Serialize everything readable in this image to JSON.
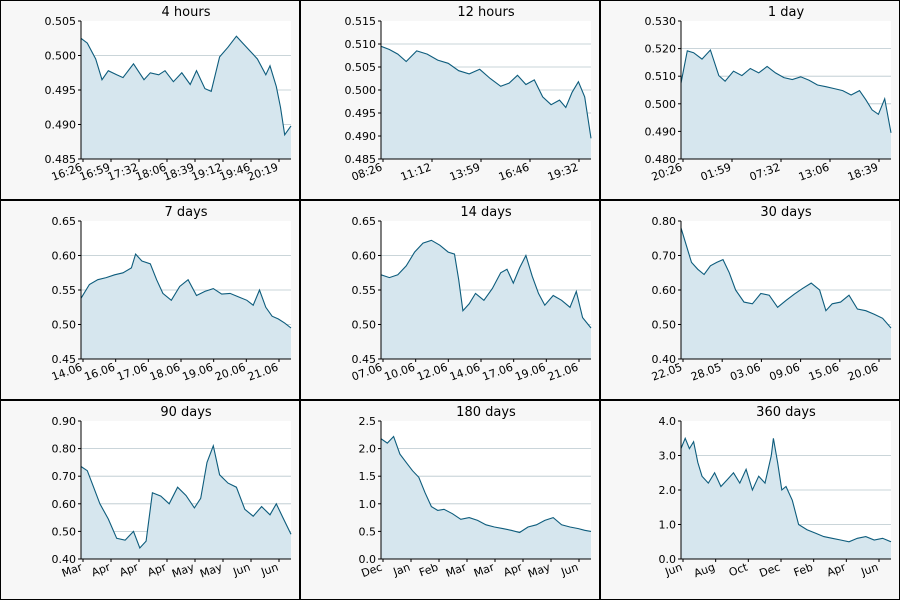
{
  "colors": {
    "line": "#0d5c7c",
    "fill": "#d6e6ee",
    "grid": "#b9c7cd",
    "panel_bg": "#f7f7f7",
    "plot_bg": "#ffffff",
    "border": "#000000"
  },
  "chart_data": [
    {
      "type": "area",
      "title": "4 hours",
      "ylim": [
        0.485,
        0.505
      ],
      "yticks": [
        "0.485",
        "0.490",
        "0.495",
        "0.500",
        "0.505"
      ],
      "xticks": [
        "16:26",
        "16:59",
        "17:32",
        "18:06",
        "18:39",
        "19:12",
        "19:46",
        "20:19"
      ],
      "grid": true,
      "x": [
        0,
        0.03,
        0.07,
        0.1,
        0.13,
        0.17,
        0.2,
        0.25,
        0.3,
        0.33,
        0.37,
        0.4,
        0.44,
        0.48,
        0.52,
        0.55,
        0.59,
        0.62,
        0.66,
        0.7,
        0.74,
        0.77,
        0.81,
        0.84,
        0.88,
        0.9,
        0.93,
        0.95,
        0.97,
        1.0
      ],
      "y": [
        0.5025,
        0.5018,
        0.4995,
        0.4965,
        0.4978,
        0.4972,
        0.4968,
        0.4988,
        0.4965,
        0.4975,
        0.4972,
        0.4978,
        0.4962,
        0.4975,
        0.4958,
        0.4978,
        0.4952,
        0.4948,
        0.4998,
        0.5012,
        0.5028,
        0.5018,
        0.5005,
        0.4995,
        0.4972,
        0.4985,
        0.4955,
        0.4925,
        0.4885,
        0.4898
      ]
    },
    {
      "type": "area",
      "title": "12 hours",
      "ylim": [
        0.485,
        0.515
      ],
      "yticks": [
        "0.485",
        "0.490",
        "0.495",
        "0.500",
        "0.505",
        "0.510",
        "0.515"
      ],
      "xticks": [
        "08:26",
        "11:12",
        "13:59",
        "16:46",
        "19:32"
      ],
      "grid": true,
      "x": [
        0,
        0.04,
        0.08,
        0.12,
        0.17,
        0.22,
        0.27,
        0.32,
        0.37,
        0.42,
        0.47,
        0.52,
        0.57,
        0.61,
        0.65,
        0.69,
        0.73,
        0.77,
        0.81,
        0.85,
        0.88,
        0.91,
        0.94,
        0.97,
        1.0
      ],
      "y": [
        0.5095,
        0.5088,
        0.5078,
        0.5062,
        0.5085,
        0.5078,
        0.5065,
        0.5058,
        0.5042,
        0.5035,
        0.5045,
        0.5025,
        0.5008,
        0.5015,
        0.5032,
        0.5012,
        0.5022,
        0.4985,
        0.4968,
        0.4978,
        0.4962,
        0.4995,
        0.5018,
        0.4985,
        0.4895
      ]
    },
    {
      "type": "area",
      "title": "1 day",
      "ylim": [
        0.48,
        0.53
      ],
      "yticks": [
        "0.480",
        "0.490",
        "0.500",
        "0.510",
        "0.520",
        "0.530"
      ],
      "xticks": [
        "20:26",
        "01:59",
        "07:32",
        "13:06",
        "18:39"
      ],
      "grid": true,
      "x": [
        0,
        0.03,
        0.06,
        0.1,
        0.14,
        0.18,
        0.21,
        0.25,
        0.29,
        0.33,
        0.37,
        0.41,
        0.45,
        0.49,
        0.53,
        0.57,
        0.61,
        0.65,
        0.69,
        0.73,
        0.77,
        0.81,
        0.85,
        0.88,
        0.91,
        0.94,
        0.97,
        1.0
      ],
      "y": [
        0.5075,
        0.5192,
        0.5185,
        0.5162,
        0.5195,
        0.5102,
        0.5082,
        0.5118,
        0.5102,
        0.5128,
        0.5112,
        0.5135,
        0.5112,
        0.5095,
        0.5088,
        0.5098,
        0.5085,
        0.5068,
        0.5062,
        0.5055,
        0.5048,
        0.5032,
        0.5048,
        0.5015,
        0.4978,
        0.4962,
        0.5018,
        0.4895
      ]
    },
    {
      "type": "area",
      "title": "7 days",
      "ylim": [
        0.45,
        0.65
      ],
      "yticks": [
        "0.45",
        "0.50",
        "0.55",
        "0.60",
        "0.65"
      ],
      "xticks": [
        "14.06",
        "16.06",
        "17.06",
        "18.06",
        "19.06",
        "20.06",
        "21.06"
      ],
      "grid": true,
      "x": [
        0,
        0.04,
        0.08,
        0.12,
        0.16,
        0.2,
        0.24,
        0.26,
        0.29,
        0.33,
        0.36,
        0.39,
        0.43,
        0.47,
        0.51,
        0.55,
        0.59,
        0.63,
        0.67,
        0.71,
        0.75,
        0.79,
        0.82,
        0.85,
        0.88,
        0.91,
        0.94,
        0.97,
        1.0
      ],
      "y": [
        0.538,
        0.558,
        0.565,
        0.568,
        0.572,
        0.575,
        0.582,
        0.602,
        0.592,
        0.588,
        0.565,
        0.545,
        0.535,
        0.555,
        0.565,
        0.542,
        0.548,
        0.552,
        0.544,
        0.545,
        0.54,
        0.535,
        0.528,
        0.55,
        0.525,
        0.512,
        0.508,
        0.502,
        0.495
      ]
    },
    {
      "type": "area",
      "title": "14 days",
      "ylim": [
        0.45,
        0.65
      ],
      "yticks": [
        "0.45",
        "0.50",
        "0.55",
        "0.60",
        "0.65"
      ],
      "xticks": [
        "07.06",
        "10.06",
        "12.06",
        "14.06",
        "17.06",
        "19.06",
        "21.06"
      ],
      "grid": true,
      "x": [
        0,
        0.04,
        0.08,
        0.12,
        0.16,
        0.2,
        0.24,
        0.28,
        0.32,
        0.35,
        0.37,
        0.39,
        0.42,
        0.45,
        0.49,
        0.53,
        0.57,
        0.6,
        0.63,
        0.66,
        0.69,
        0.72,
        0.75,
        0.78,
        0.82,
        0.86,
        0.9,
        0.93,
        0.96,
        1.0
      ],
      "y": [
        0.572,
        0.568,
        0.572,
        0.585,
        0.605,
        0.618,
        0.622,
        0.615,
        0.605,
        0.602,
        0.565,
        0.52,
        0.53,
        0.545,
        0.535,
        0.552,
        0.575,
        0.58,
        0.56,
        0.582,
        0.6,
        0.57,
        0.545,
        0.528,
        0.542,
        0.535,
        0.525,
        0.548,
        0.51,
        0.495
      ]
    },
    {
      "type": "area",
      "title": "30 days",
      "ylim": [
        0.4,
        0.8
      ],
      "yticks": [
        "0.40",
        "0.50",
        "0.60",
        "0.70",
        "0.80"
      ],
      "xticks": [
        "22.05",
        "28.05",
        "03.06",
        "09.06",
        "15.06",
        "20.06"
      ],
      "grid": true,
      "x": [
        0,
        0.02,
        0.05,
        0.08,
        0.11,
        0.14,
        0.17,
        0.2,
        0.23,
        0.26,
        0.3,
        0.34,
        0.38,
        0.42,
        0.46,
        0.5,
        0.54,
        0.58,
        0.62,
        0.66,
        0.69,
        0.72,
        0.76,
        0.8,
        0.84,
        0.88,
        0.92,
        0.96,
        1.0
      ],
      "y": [
        0.78,
        0.74,
        0.68,
        0.66,
        0.645,
        0.67,
        0.68,
        0.688,
        0.65,
        0.6,
        0.565,
        0.56,
        0.59,
        0.585,
        0.55,
        0.57,
        0.588,
        0.605,
        0.62,
        0.6,
        0.54,
        0.56,
        0.565,
        0.585,
        0.545,
        0.54,
        0.53,
        0.518,
        0.49
      ]
    },
    {
      "type": "area",
      "title": "90 days",
      "ylim": [
        0.4,
        0.9
      ],
      "yticks": [
        "0.40",
        "0.50",
        "0.60",
        "0.70",
        "0.80",
        "0.90"
      ],
      "xticks": [
        "Mar",
        "Apr",
        "Apr",
        "Apr",
        "May",
        "May",
        "Jun",
        "Jun"
      ],
      "grid": true,
      "x": [
        0,
        0.03,
        0.06,
        0.09,
        0.13,
        0.17,
        0.21,
        0.25,
        0.28,
        0.31,
        0.34,
        0.38,
        0.42,
        0.46,
        0.5,
        0.54,
        0.57,
        0.6,
        0.63,
        0.66,
        0.7,
        0.74,
        0.78,
        0.82,
        0.86,
        0.9,
        0.93,
        0.96,
        1.0
      ],
      "y": [
        0.735,
        0.72,
        0.66,
        0.6,
        0.545,
        0.475,
        0.468,
        0.5,
        0.44,
        0.465,
        0.64,
        0.628,
        0.6,
        0.66,
        0.63,
        0.585,
        0.62,
        0.75,
        0.81,
        0.705,
        0.675,
        0.66,
        0.58,
        0.555,
        0.59,
        0.56,
        0.6,
        0.552,
        0.49
      ]
    },
    {
      "type": "area",
      "title": "180 days",
      "ylim": [
        0.0,
        2.5
      ],
      "yticks": [
        "0.0",
        "0.5",
        "1.0",
        "1.5",
        "2.0",
        "2.5"
      ],
      "xticks": [
        "Dec",
        "Jan",
        "Feb",
        "Mar",
        "Mar",
        "Apr",
        "May",
        "Jun"
      ],
      "grid": true,
      "x": [
        0,
        0.03,
        0.06,
        0.09,
        0.12,
        0.15,
        0.18,
        0.21,
        0.24,
        0.27,
        0.3,
        0.34,
        0.38,
        0.42,
        0.46,
        0.5,
        0.54,
        0.58,
        0.62,
        0.66,
        0.7,
        0.74,
        0.78,
        0.82,
        0.86,
        0.9,
        0.94,
        0.97,
        1.0
      ],
      "y": [
        2.18,
        2.1,
        2.22,
        1.9,
        1.75,
        1.6,
        1.48,
        1.2,
        0.95,
        0.88,
        0.9,
        0.82,
        0.72,
        0.75,
        0.7,
        0.62,
        0.58,
        0.55,
        0.52,
        0.48,
        0.58,
        0.62,
        0.7,
        0.75,
        0.62,
        0.58,
        0.55,
        0.52,
        0.5
      ]
    },
    {
      "type": "area",
      "title": "360 days",
      "ylim": [
        0.0,
        4.0
      ],
      "yticks": [
        "0.0",
        "1.0",
        "2.0",
        "3.0",
        "4.0"
      ],
      "xticks": [
        "Jun",
        "Aug",
        "Oct",
        "Dec",
        "Feb",
        "Apr",
        "Jun"
      ],
      "grid": true,
      "x": [
        0,
        0.02,
        0.04,
        0.06,
        0.08,
        0.1,
        0.13,
        0.16,
        0.19,
        0.22,
        0.25,
        0.28,
        0.31,
        0.34,
        0.37,
        0.4,
        0.43,
        0.44,
        0.46,
        0.48,
        0.5,
        0.53,
        0.56,
        0.6,
        0.64,
        0.68,
        0.72,
        0.76,
        0.8,
        0.84,
        0.88,
        0.92,
        0.96,
        1.0
      ],
      "y": [
        3.2,
        3.5,
        3.2,
        3.4,
        2.8,
        2.4,
        2.2,
        2.5,
        2.1,
        2.3,
        2.5,
        2.2,
        2.6,
        2.0,
        2.4,
        2.2,
        3.0,
        3.5,
        2.8,
        2.0,
        2.1,
        1.7,
        1.0,
        0.85,
        0.75,
        0.65,
        0.6,
        0.55,
        0.5,
        0.6,
        0.65,
        0.55,
        0.6,
        0.5
      ]
    }
  ]
}
